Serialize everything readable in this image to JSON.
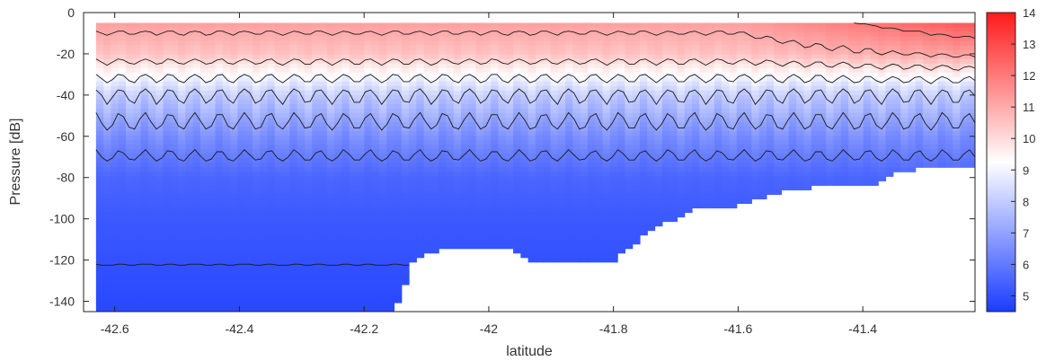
{
  "chart_data": {
    "type": "heatmap",
    "title": "",
    "xlabel": "latitude",
    "ylabel": "Pressure [dB]",
    "xlim": [
      -42.65,
      -41.22
    ],
    "ylim": [
      -145,
      0
    ],
    "x_ticks": [
      -42.6,
      -42.4,
      -42.2,
      -42,
      -41.8,
      -41.6,
      -41.4
    ],
    "x_tick_labels": [
      "-42.6",
      "-42.4",
      "-42.2",
      "-42",
      "-41.8",
      "-41.6",
      "-41.4"
    ],
    "y_ticks": [
      0,
      -20,
      -40,
      -60,
      -80,
      -100,
      -120,
      -140
    ],
    "y_tick_labels": [
      "0",
      "-20",
      "-40",
      "-60",
      "-80",
      "-100",
      "-120",
      "-140"
    ],
    "colorbar": {
      "range": [
        4.5,
        14
      ],
      "ticks": [
        5,
        6,
        7,
        8,
        9,
        10,
        11,
        12,
        13,
        14
      ],
      "tick_labels": [
        "5",
        "6",
        "7",
        "8",
        "9",
        "10",
        "11",
        "12",
        "13",
        "14"
      ],
      "colormap": [
        "#1a3cff",
        "#ffffff",
        "#ff1a1a"
      ]
    },
    "surface_pressure": -5,
    "contour_levels": [
      5,
      6,
      7,
      8,
      9,
      10,
      11,
      12,
      13
    ],
    "data_extent": {
      "x_start": -42.63,
      "x_end": -41.22,
      "bottom_profile": [
        {
          "lat": -42.63,
          "p": -145
        },
        {
          "lat": -42.15,
          "p": -145
        },
        {
          "lat": -42.12,
          "p": -120
        },
        {
          "lat": -42.08,
          "p": -115
        },
        {
          "lat": -42.0,
          "p": -115
        },
        {
          "lat": -41.97,
          "p": -115
        },
        {
          "lat": -41.93,
          "p": -120
        },
        {
          "lat": -41.8,
          "p": -120
        },
        {
          "lat": -41.78,
          "p": -115
        },
        {
          "lat": -41.75,
          "p": -108
        },
        {
          "lat": -41.72,
          "p": -103
        },
        {
          "lat": -41.68,
          "p": -96
        },
        {
          "lat": -41.6,
          "p": -94
        },
        {
          "lat": -41.55,
          "p": -88
        },
        {
          "lat": -41.5,
          "p": -85
        },
        {
          "lat": -41.38,
          "p": -84
        },
        {
          "lat": -41.35,
          "p": -78
        },
        {
          "lat": -41.3,
          "p": -75
        },
        {
          "lat": -41.22,
          "p": -75
        }
      ]
    },
    "temperature_profile": [
      {
        "p": 0,
        "t": 11.5
      },
      {
        "p": -20,
        "t": 10.5
      },
      {
        "p": -40,
        "t": 8.0
      },
      {
        "p": -60,
        "t": 6.5
      },
      {
        "p": -80,
        "t": 5.5
      },
      {
        "p": -100,
        "t": 5.2
      },
      {
        "p": -145,
        "t": 4.8
      }
    ],
    "warm_surface_region": {
      "lat_from": -41.6,
      "lat_to": -41.22,
      "t": 13.2
    }
  }
}
